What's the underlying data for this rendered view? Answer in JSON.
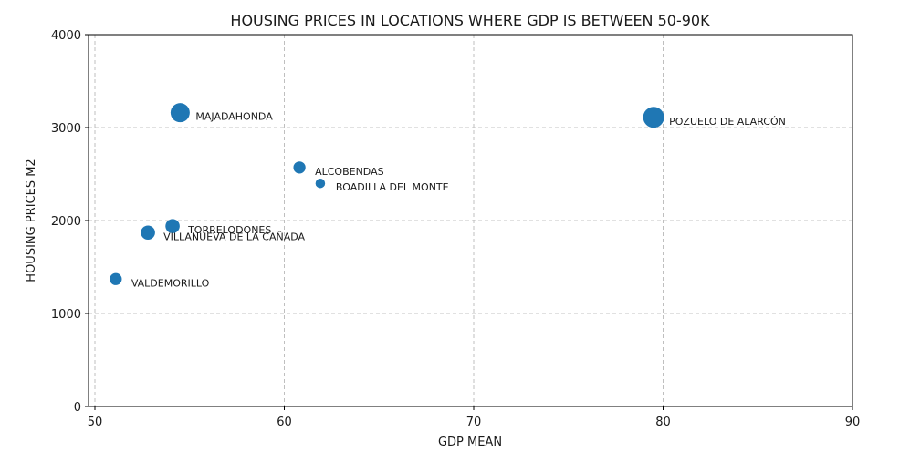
{
  "chart_data": {
    "type": "scatter",
    "title": "HOUSING PRICES IN LOCATIONS WHERE GDP IS BETWEEN 50-90K",
    "xlabel": "GDP MEAN",
    "ylabel": "HOUSING PRICES M2",
    "xlim": [
      50,
      90
    ],
    "ylim": [
      0,
      4000
    ],
    "xticks": [
      50,
      60,
      70,
      80,
      90
    ],
    "yticks": [
      0,
      1000,
      2000,
      3000,
      4000
    ],
    "grid": true,
    "marker_color": "#1f77b4",
    "points": [
      {
        "label": "MAJADAHONDA",
        "x": 54.5,
        "y": 3160,
        "size": 100
      },
      {
        "label": "POZUELO DE ALARCÓN",
        "x": 79.5,
        "y": 3110,
        "size": 120
      },
      {
        "label": "ALCOBENDAS",
        "x": 60.8,
        "y": 2570,
        "size": 40
      },
      {
        "label": "BOADILLA DEL MONTE",
        "x": 61.9,
        "y": 2400,
        "size": 25
      },
      {
        "label": "TORRELODONES",
        "x": 54.1,
        "y": 1940,
        "size": 55
      },
      {
        "label": "VILLANUEVA DE LA CAÑADA",
        "x": 52.8,
        "y": 1870,
        "size": 55
      },
      {
        "label": "VALDEMORILLO",
        "x": 51.1,
        "y": 1370,
        "size": 40
      }
    ]
  }
}
